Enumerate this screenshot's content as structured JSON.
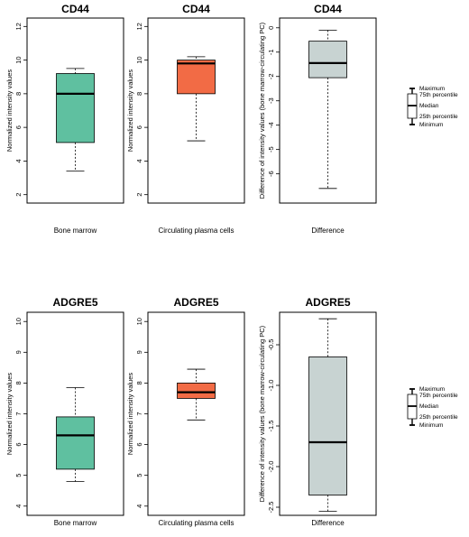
{
  "chart_data": [
    {
      "type": "box",
      "title": "CD44",
      "xlabel": "Bone marrow",
      "ylabel": "Normalized intensity values",
      "ylim": [
        1.5,
        12.5
      ],
      "ticks": [
        2,
        4,
        6,
        8,
        10,
        12
      ],
      "tick_labels": [
        "2",
        "4",
        "6",
        "8",
        "10",
        "12"
      ],
      "box": {
        "min": 3.4,
        "q1": 5.1,
        "median": 8.0,
        "q3": 9.2,
        "max": 9.5
      },
      "color": "#5FC0A0"
    },
    {
      "type": "box",
      "title": "CD44",
      "xlabel": "Circulating plasma cells",
      "ylabel": "Normalized intensity values",
      "ylim": [
        1.5,
        12.5
      ],
      "ticks": [
        2,
        4,
        6,
        8,
        10,
        12
      ],
      "tick_labels": [
        "2",
        "4",
        "6",
        "8",
        "10",
        "12"
      ],
      "box": {
        "min": 5.2,
        "q1": 8.0,
        "median": 9.8,
        "q3": 10.0,
        "max": 10.2
      },
      "color": "#F26B45"
    },
    {
      "type": "box",
      "title": "CD44",
      "xlabel": "Difference",
      "ylabel": "Difference of intensity values (bone marrow-circulating PC)",
      "ylim": [
        -7.2,
        0.4
      ],
      "ticks": [
        0,
        -1,
        -2,
        -3,
        -4,
        -5,
        -6
      ],
      "tick_labels": [
        "0",
        "-1",
        "-2",
        "-3",
        "-4",
        "-5",
        "-6"
      ],
      "box": {
        "min": -6.6,
        "q1": -2.05,
        "median": -1.45,
        "q3": -0.55,
        "max": -0.1
      },
      "color": "#C8D3D2"
    },
    {
      "type": "box",
      "title": "ADGRE5",
      "xlabel": "Bone marrow",
      "ylabel": "Normalized intensity values",
      "ylim": [
        3.7,
        10.3
      ],
      "ticks": [
        4,
        5,
        6,
        7,
        8,
        9,
        10
      ],
      "tick_labels": [
        "4",
        "5",
        "6",
        "7",
        "8",
        "9",
        "10"
      ],
      "box": {
        "min": 4.8,
        "q1": 5.2,
        "median": 6.3,
        "q3": 6.9,
        "max": 7.85
      },
      "color": "#5FC0A0"
    },
    {
      "type": "box",
      "title": "ADGRE5",
      "xlabel": "Circulating plasma cells",
      "ylabel": "Normalized intensity values",
      "ylim": [
        3.7,
        10.3
      ],
      "ticks": [
        4,
        5,
        6,
        7,
        8,
        9,
        10
      ],
      "tick_labels": [
        "4",
        "5",
        "6",
        "7",
        "8",
        "9",
        "10"
      ],
      "box": {
        "min": 6.8,
        "q1": 7.5,
        "median": 7.7,
        "q3": 8.0,
        "max": 8.45
      },
      "color": "#F26B45"
    },
    {
      "type": "box",
      "title": "ADGRE5",
      "xlabel": "Difference",
      "ylabel": "Difference of intensity values (bone marrow-circulating PC)",
      "ylim": [
        -2.6,
        -0.1
      ],
      "ticks": [
        -0.5,
        -1.0,
        -1.5,
        -2.0,
        -2.5
      ],
      "tick_labels": [
        "-0.5",
        "-1.0",
        "-1.5",
        "-2.0",
        "-2.5"
      ],
      "box": {
        "min": -2.55,
        "q1": -2.35,
        "median": -1.7,
        "q3": -0.65,
        "max": -0.18
      },
      "color": "#C8D3D2"
    }
  ],
  "legend": {
    "maximum": "Maximum",
    "q3": "75th percentile",
    "median": "Median",
    "q1": "25th percentile",
    "minimum": "Minimum"
  }
}
